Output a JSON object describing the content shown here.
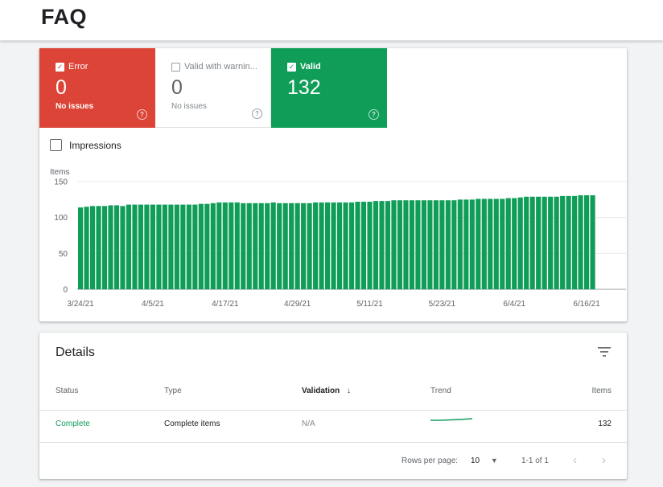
{
  "page": {
    "title": "FAQ"
  },
  "summary": {
    "error": {
      "label": "Error",
      "count": "0",
      "sub": "No issues",
      "color": "#db4437"
    },
    "warning": {
      "label": "Valid with warnin...",
      "count": "0",
      "sub": "No issues"
    },
    "valid": {
      "label": "Valid",
      "count": "132",
      "color": "#0f9d58"
    }
  },
  "impressions": {
    "label": "Impressions"
  },
  "chart_data": {
    "type": "bar",
    "ylabel": "Items",
    "ylim": [
      0,
      150
    ],
    "yticks": [
      0,
      50,
      100,
      150
    ],
    "xticks": [
      "3/24/21",
      "4/5/21",
      "4/17/21",
      "4/29/21",
      "5/11/21",
      "5/23/21",
      "6/4/21",
      "6/16/21"
    ],
    "color": "#0f9d58",
    "grid": true,
    "values": [
      114,
      115,
      116,
      116,
      116,
      117,
      117,
      116,
      118,
      118,
      118,
      118,
      118,
      118,
      118,
      118,
      118,
      118,
      118,
      118,
      119,
      119,
      120,
      121,
      121,
      121,
      121,
      120,
      120,
      120,
      120,
      120,
      121,
      120,
      120,
      120,
      120,
      120,
      120,
      121,
      121,
      121,
      121,
      121,
      121,
      121,
      122,
      122,
      122,
      123,
      123,
      123,
      124,
      124,
      124,
      124,
      124,
      124,
      124,
      124,
      124,
      124,
      124,
      125,
      125,
      125,
      126,
      126,
      126,
      126,
      126,
      127,
      127,
      128,
      129,
      129,
      129,
      129,
      129,
      129,
      130,
      130,
      130,
      131,
      131,
      131
    ]
  },
  "details": {
    "title": "Details",
    "columns": {
      "status": "Status",
      "type": "Type",
      "validation": "Validation",
      "trend": "Trend",
      "items": "Items"
    },
    "rows": [
      {
        "status": "Complete",
        "type": "Complete items",
        "validation": "N/A",
        "items": "132"
      }
    ],
    "footer": {
      "rows_per_page_label": "Rows per page:",
      "rows_per_page": "10",
      "range": "1-1 of 1"
    }
  },
  "icons": {
    "filter": "filter-icon",
    "sort": "arrow-down-icon",
    "help": "help-circle-icon",
    "prev": "chevron-left-icon",
    "next": "chevron-right-icon",
    "dropdown": "caret-down-icon"
  }
}
